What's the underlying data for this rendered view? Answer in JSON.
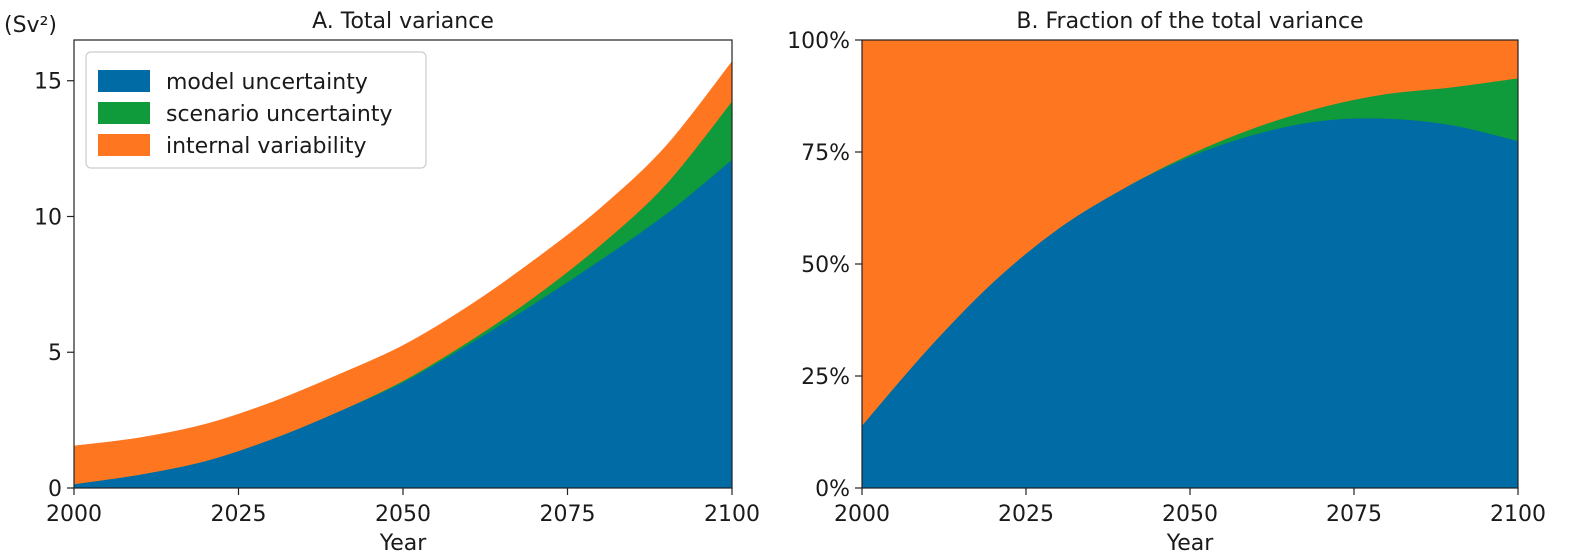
{
  "chart_data": [
    {
      "type": "area",
      "stacked": true,
      "title": "A. Total variance",
      "unit_label": "(Sv²)",
      "xlabel": "Year",
      "ylabel": "",
      "xlim": [
        2000,
        2100
      ],
      "ylim": [
        0,
        16.5
      ],
      "xticks": [
        2000,
        2025,
        2050,
        2075,
        2100
      ],
      "yticks": [
        0,
        5,
        10,
        15
      ],
      "grid": false,
      "legend_position": "top-left",
      "x": [
        2000,
        2010,
        2020,
        2030,
        2040,
        2050,
        2060,
        2070,
        2080,
        2090,
        2100
      ],
      "series": [
        {
          "name": "model uncertainty",
          "color": "#006ba4",
          "values": [
            0.15,
            0.5,
            1.0,
            1.8,
            2.8,
            3.9,
            5.3,
            6.8,
            8.4,
            10.1,
            12.1
          ]
        },
        {
          "name": "scenario uncertainty",
          "color": "#0f9a3b",
          "values": [
            0.0,
            0.0,
            0.0,
            0.0,
            0.0,
            0.05,
            0.1,
            0.25,
            0.55,
            1.1,
            2.15
          ]
        },
        {
          "name": "internal variability",
          "color": "#ff7621",
          "values": [
            1.4,
            1.35,
            1.35,
            1.35,
            1.35,
            1.3,
            1.3,
            1.35,
            1.35,
            1.4,
            1.45
          ]
        }
      ]
    },
    {
      "type": "area",
      "stacked": true,
      "title": "B. Fraction of the total variance",
      "xlabel": "Year",
      "ylabel": "",
      "xlim": [
        2000,
        2100
      ],
      "ylim": [
        0,
        100
      ],
      "xticks": [
        2000,
        2025,
        2050,
        2075,
        2100
      ],
      "yticks": [
        0,
        25,
        50,
        75,
        100
      ],
      "ytick_labels": [
        "0%",
        "25%",
        "50%",
        "75%",
        "100%"
      ],
      "grid": false,
      "x": [
        2000,
        2010,
        2020,
        2030,
        2040,
        2050,
        2060,
        2070,
        2080,
        2090,
        2100
      ],
      "series": [
        {
          "name": "model uncertainty",
          "color": "#006ba4",
          "values": [
            14,
            31,
            46,
            58,
            67,
            74,
            79,
            82,
            82.5,
            81,
            77.5
          ]
        },
        {
          "name": "scenario uncertainty",
          "color": "#0f9a3b",
          "values": [
            0,
            0,
            0,
            0,
            0,
            0.5,
            1.5,
            3,
            5.5,
            8.5,
            14
          ]
        },
        {
          "name": "internal variability",
          "color": "#ff7621",
          "values": [
            86,
            69,
            54,
            42,
            33,
            25.5,
            19.5,
            15,
            12,
            10.5,
            8.5
          ]
        }
      ]
    }
  ]
}
